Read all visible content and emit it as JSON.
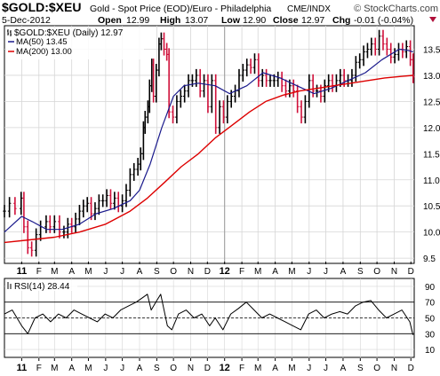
{
  "header": {
    "symbol": "$GOLD:$XEU",
    "description": "Gold - Spot Price (EOD)/Euro - Philadelphia",
    "exchange": "CME/INDX",
    "brand": "© StockCharts.com",
    "date": "5-Dec-2012",
    "open_label": "Open",
    "open": "12.99",
    "high_label": "High",
    "high": "13.07",
    "low_label": "Low",
    "low": "12.90",
    "close_label": "Close",
    "close": "12.97",
    "chg_label": "Chg",
    "chg": "-0.01 (-0.04%)"
  },
  "colors": {
    "price_up": "#000000",
    "price_down": "#d0103a",
    "ma50": "#1a1a8c",
    "ma200": "#dd0000",
    "rsi": "#000000",
    "grid": "#d6d6d6",
    "frame": "#000000",
    "brand": "#444444"
  },
  "chart_data": [
    {
      "type": "line",
      "title": "$GOLD:$XEU (Daily) 12.97",
      "legend": [
        {
          "key": "ma50",
          "label": "MA(50) 13.45"
        },
        {
          "key": "ma200",
          "label": "MA(200) 13.00"
        }
      ],
      "legend_position": "top-left",
      "y_axis_position": "right",
      "grid": true,
      "ylim": [
        9.4,
        13.95
      ],
      "yticks": [
        "9.5",
        "10.0",
        "10.5",
        "11.0",
        "11.5",
        "12.0",
        "12.5",
        "13.0",
        "13.5"
      ],
      "x_labels": [
        "11",
        "F",
        "M",
        "A",
        "M",
        "J",
        "J",
        "A",
        "S",
        "O",
        "N",
        "D",
        "12",
        "F",
        "M",
        "A",
        "M",
        "J",
        "J",
        "A",
        "S",
        "O",
        "N",
        "D"
      ],
      "x_labels_bold": [
        "11",
        "12"
      ],
      "months": [
        "2011-01",
        "2011-02",
        "2011-03",
        "2011-04",
        "2011-05",
        "2011-06",
        "2011-07",
        "2011-08",
        "2011-09",
        "2011-10",
        "2011-11",
        "2011-12",
        "2012-01",
        "2012-02",
        "2012-03",
        "2012-04",
        "2012-05",
        "2012-06",
        "2012-07",
        "2012-08",
        "2012-09",
        "2012-10",
        "2012-11",
        "2012-12"
      ],
      "series": [
        {
          "key": "price",
          "x": [
            "2010-12-01",
            "2010-12-10",
            "2010-12-20",
            "2010-12-31",
            "2011-01-05",
            "2011-01-12",
            "2011-01-19",
            "2011-01-27",
            "2011-02-04",
            "2011-02-14",
            "2011-02-21",
            "2011-03-01",
            "2011-03-10",
            "2011-03-18",
            "2011-03-25",
            "2011-04-01",
            "2011-04-08",
            "2011-04-15",
            "2011-04-22",
            "2011-04-29",
            "2011-05-06",
            "2011-05-13",
            "2011-05-20",
            "2011-05-27",
            "2011-06-03",
            "2011-06-10",
            "2011-06-17",
            "2011-06-24",
            "2011-07-01",
            "2011-07-08",
            "2011-07-15",
            "2011-07-22",
            "2011-07-29",
            "2011-08-03",
            "2011-08-08",
            "2011-08-11",
            "2011-08-16",
            "2011-08-19",
            "2011-08-23",
            "2011-08-26",
            "2011-08-31",
            "2011-09-05",
            "2011-09-09",
            "2011-09-14",
            "2011-09-19",
            "2011-09-23",
            "2011-09-30",
            "2011-10-07",
            "2011-10-14",
            "2011-10-21",
            "2011-10-28",
            "2011-11-04",
            "2011-11-11",
            "2011-11-18",
            "2011-11-25",
            "2011-12-02",
            "2011-12-09",
            "2011-12-16",
            "2011-12-23",
            "2011-12-30",
            "2012-01-06",
            "2012-01-13",
            "2012-01-20",
            "2012-01-27",
            "2012-02-03",
            "2012-02-10",
            "2012-02-17",
            "2012-02-24",
            "2012-03-02",
            "2012-03-09",
            "2012-03-16",
            "2012-03-23",
            "2012-03-30",
            "2012-04-06",
            "2012-04-13",
            "2012-04-20",
            "2012-04-27",
            "2012-05-04",
            "2012-05-11",
            "2012-05-18",
            "2012-05-25",
            "2012-06-01",
            "2012-06-08",
            "2012-06-15",
            "2012-06-22",
            "2012-06-29",
            "2012-07-06",
            "2012-07-13",
            "2012-07-20",
            "2012-07-27",
            "2012-08-03",
            "2012-08-10",
            "2012-08-17",
            "2012-08-24",
            "2012-08-31",
            "2012-09-07",
            "2012-09-14",
            "2012-09-21",
            "2012-09-28",
            "2012-10-05",
            "2012-10-12",
            "2012-10-19",
            "2012-10-26",
            "2012-11-02",
            "2012-11-09",
            "2012-11-16",
            "2012-11-23",
            "2012-11-30",
            "2012-12-05"
          ],
          "values": [
            10.4,
            10.55,
            10.45,
            10.65,
            10.1,
            9.7,
            9.65,
            9.95,
            10.1,
            10.2,
            10.1,
            10.2,
            10.0,
            10.0,
            10.15,
            10.1,
            10.25,
            10.4,
            10.5,
            10.55,
            10.35,
            10.45,
            10.6,
            10.6,
            10.7,
            10.55,
            10.65,
            10.5,
            10.6,
            10.8,
            11.1,
            11.2,
            11.3,
            11.5,
            12.0,
            12.2,
            12.4,
            12.8,
            13.2,
            12.6,
            13.1,
            13.6,
            13.7,
            13.5,
            13.4,
            12.3,
            12.2,
            12.5,
            12.6,
            12.7,
            12.9,
            12.9,
            13.0,
            12.7,
            12.9,
            12.4,
            12.9,
            12.0,
            12.4,
            12.2,
            12.5,
            12.6,
            12.7,
            13.0,
            13.1,
            13.2,
            13.15,
            13.3,
            12.9,
            13.0,
            12.9,
            12.9,
            12.9,
            12.95,
            12.8,
            12.7,
            12.8,
            12.7,
            12.4,
            12.2,
            12.5,
            12.9,
            12.7,
            12.7,
            12.6,
            12.8,
            12.9,
            12.8,
            12.9,
            13.0,
            12.9,
            12.9,
            13.0,
            13.25,
            13.3,
            13.45,
            13.5,
            13.6,
            13.5,
            13.75,
            13.6,
            13.5,
            13.35,
            13.4,
            13.5,
            13.45,
            13.55,
            13.3,
            12.97
          ]
        },
        {
          "key": "ma50",
          "name": "MA(50)",
          "x": [
            "2010-12-01",
            "2011-01-01",
            "2011-01-20",
            "2011-02-15",
            "2011-03-15",
            "2011-04-15",
            "2011-05-15",
            "2011-06-15",
            "2011-07-15",
            "2011-08-01",
            "2011-08-20",
            "2011-09-10",
            "2011-10-01",
            "2011-10-20",
            "2011-11-15",
            "2011-12-15",
            "2012-01-10",
            "2012-02-10",
            "2012-03-10",
            "2012-04-10",
            "2012-05-10",
            "2012-06-10",
            "2012-07-10",
            "2012-08-10",
            "2012-09-10",
            "2012-10-10",
            "2012-11-10",
            "2012-11-25",
            "2012-12-05"
          ],
          "values": [
            10.0,
            10.3,
            10.2,
            10.05,
            10.05,
            10.15,
            10.35,
            10.45,
            10.6,
            10.8,
            11.3,
            12.0,
            12.6,
            12.8,
            12.85,
            12.8,
            12.65,
            12.8,
            13.05,
            12.95,
            12.8,
            12.65,
            12.75,
            12.9,
            13.05,
            13.3,
            13.5,
            13.48,
            13.45
          ]
        },
        {
          "key": "ma200",
          "name": "MA(200)",
          "x": [
            "2010-12-01",
            "2011-01-15",
            "2011-03-01",
            "2011-04-15",
            "2011-06-01",
            "2011-07-15",
            "2011-08-15",
            "2011-09-15",
            "2011-10-15",
            "2011-11-15",
            "2011-12-15",
            "2012-01-15",
            "2012-02-15",
            "2012-03-15",
            "2012-04-15",
            "2012-05-15",
            "2012-06-15",
            "2012-07-15",
            "2012-08-15",
            "2012-09-15",
            "2012-10-15",
            "2012-11-15",
            "2012-12-05"
          ],
          "values": [
            9.8,
            9.85,
            9.9,
            10.0,
            10.15,
            10.4,
            10.65,
            10.95,
            11.25,
            11.5,
            11.8,
            12.05,
            12.3,
            12.5,
            12.62,
            12.7,
            12.75,
            12.8,
            12.85,
            12.9,
            12.95,
            12.98,
            13.0
          ]
        }
      ]
    },
    {
      "type": "line",
      "title": "RSI(14) 28.44",
      "legend_position": "top-left",
      "y_axis_position": "right",
      "ylim": [
        0,
        100
      ],
      "yticks": [
        "10",
        "30",
        "50",
        "70",
        "90"
      ],
      "reference_lines": [
        30,
        50,
        70
      ],
      "x_labels": [
        "11",
        "F",
        "M",
        "A",
        "M",
        "J",
        "J",
        "A",
        "S",
        "O",
        "N",
        "D",
        "12",
        "F",
        "M",
        "A",
        "M",
        "J",
        "J",
        "A",
        "S",
        "O",
        "N",
        "D"
      ],
      "x_labels_bold": [
        "11",
        "12"
      ],
      "months": [
        "2011-01",
        "2011-02",
        "2011-03",
        "2011-04",
        "2011-05",
        "2011-06",
        "2011-07",
        "2011-08",
        "2011-09",
        "2011-10",
        "2011-11",
        "2011-12",
        "2012-01",
        "2012-02",
        "2012-03",
        "2012-04",
        "2012-05",
        "2012-06",
        "2012-07",
        "2012-08",
        "2012-09",
        "2012-10",
        "2012-11",
        "2012-12"
      ],
      "series": [
        {
          "key": "rsi",
          "name": "RSI(14)",
          "x": [
            "2010-12-01",
            "2010-12-15",
            "2011-01-01",
            "2011-01-12",
            "2011-01-25",
            "2011-02-08",
            "2011-02-22",
            "2011-03-08",
            "2011-03-22",
            "2011-04-05",
            "2011-04-19",
            "2011-05-03",
            "2011-05-17",
            "2011-05-31",
            "2011-06-14",
            "2011-06-28",
            "2011-07-12",
            "2011-07-26",
            "2011-08-05",
            "2011-08-15",
            "2011-08-22",
            "2011-09-01",
            "2011-09-08",
            "2011-09-20",
            "2011-09-28",
            "2011-10-10",
            "2011-10-24",
            "2011-11-07",
            "2011-11-21",
            "2011-12-05",
            "2011-12-15",
            "2011-12-29",
            "2012-01-12",
            "2012-01-26",
            "2012-02-09",
            "2012-02-23",
            "2012-03-08",
            "2012-03-22",
            "2012-04-05",
            "2012-04-19",
            "2012-05-03",
            "2012-05-17",
            "2012-05-31",
            "2012-06-14",
            "2012-06-28",
            "2012-07-12",
            "2012-07-26",
            "2012-08-09",
            "2012-08-23",
            "2012-09-06",
            "2012-09-20",
            "2012-10-04",
            "2012-10-18",
            "2012-11-01",
            "2012-11-15",
            "2012-11-29",
            "2012-12-05"
          ],
          "values": [
            55,
            60,
            40,
            30,
            50,
            55,
            45,
            55,
            50,
            60,
            55,
            50,
            45,
            55,
            50,
            60,
            65,
            70,
            75,
            80,
            60,
            72,
            80,
            40,
            35,
            55,
            60,
            50,
            55,
            40,
            50,
            35,
            55,
            62,
            70,
            60,
            50,
            55,
            50,
            45,
            40,
            35,
            55,
            60,
            50,
            55,
            58,
            55,
            65,
            70,
            72,
            60,
            50,
            55,
            60,
            45,
            28.44
          ]
        }
      ]
    }
  ]
}
